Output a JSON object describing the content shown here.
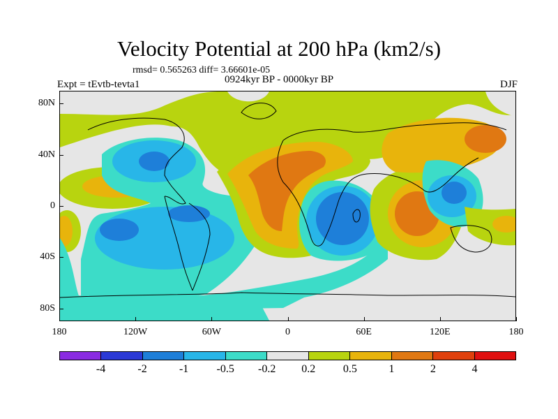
{
  "title": "Velocity Potential at 200 hPa (km2/s)",
  "stats": "rmsd= 0.565263 diff= 3.66601e-05",
  "left_label": "Expt = tEvtb-tevta1",
  "center_label": "0924kyr BP - 0000kyr BP",
  "right_label": "DJF",
  "y_axis": {
    "labels": [
      "80N",
      "40N",
      "0",
      "40S",
      "80S"
    ],
    "values": [
      80,
      40,
      0,
      -40,
      -80
    ]
  },
  "x_axis": {
    "labels": [
      "180",
      "120W",
      "60W",
      "0",
      "60E",
      "120E",
      "180"
    ],
    "values": [
      -180,
      -120,
      -60,
      0,
      60,
      120,
      180
    ]
  },
  "colorbar": {
    "colors": [
      "#8a2be2",
      "#2b39d6",
      "#1e7fd9",
      "#28b6e8",
      "#3cdcc8",
      "#e6e6e6",
      "#b8d40f",
      "#e8b40c",
      "#e07812",
      "#e0400c",
      "#e01010"
    ],
    "labels": [
      "-4",
      "-2",
      "-1",
      "-0.5",
      "-0.2",
      "0.2",
      "0.5",
      "1",
      "2",
      "4"
    ]
  }
}
